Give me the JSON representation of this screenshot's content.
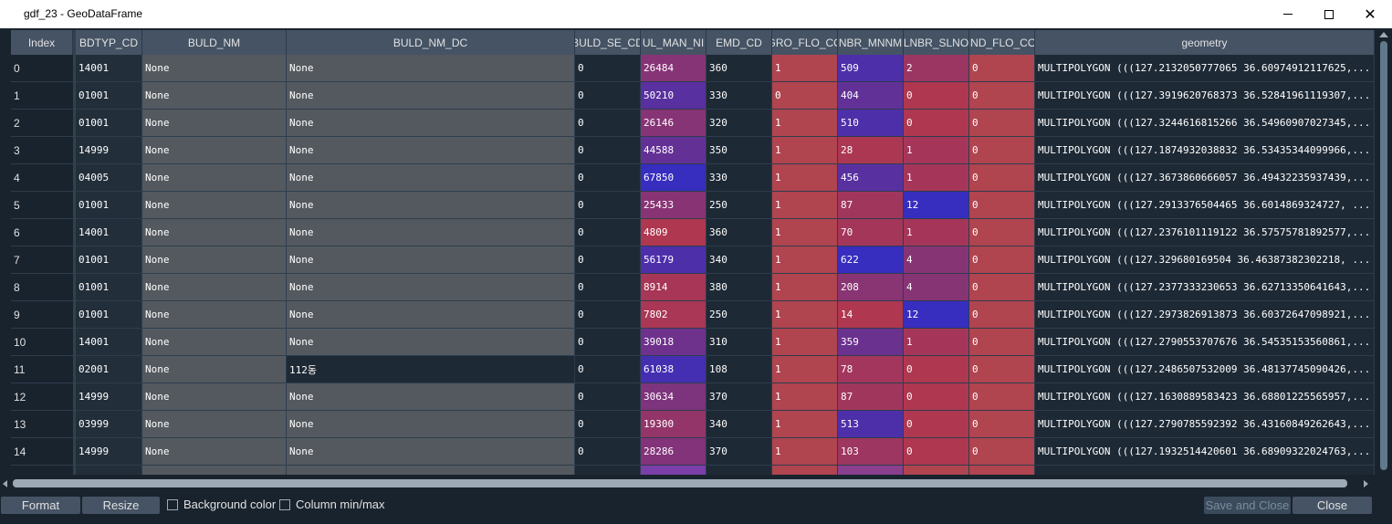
{
  "window": {
    "title": "gdf_23 - GeoDataFrame"
  },
  "table": {
    "index_header": "Index",
    "columns": [
      "BDTYP_CD",
      "BULD_NM",
      "BULD_NM_DC",
      "BULD_SE_CD",
      "UL_MAN_NI",
      "EMD_CD",
      "GRO_FLO_CO",
      "NBR_MNNM",
      "LNBR_SLNO",
      "IND_FLO_CO",
      "geometry"
    ],
    "rows": [
      {
        "index": "0",
        "cells": [
          "14001",
          "None",
          "None",
          "0",
          "26484",
          "360",
          "1",
          "509",
          "2",
          "0",
          "MULTIPOLYGON (((127.2132050777065 36.60974912117625,..."
        ]
      },
      {
        "index": "1",
        "cells": [
          "01001",
          "None",
          "None",
          "0",
          "50210",
          "330",
          "0",
          "404",
          "0",
          "0",
          "MULTIPOLYGON (((127.3919620768373 36.52841961119307,..."
        ]
      },
      {
        "index": "2",
        "cells": [
          "01001",
          "None",
          "None",
          "0",
          "26146",
          "320",
          "1",
          "510",
          "0",
          "0",
          "MULTIPOLYGON (((127.3244616815266 36.54960907027345,..."
        ]
      },
      {
        "index": "3",
        "cells": [
          "14999",
          "None",
          "None",
          "0",
          "44588",
          "350",
          "1",
          "28",
          "1",
          "0",
          "MULTIPOLYGON (((127.1874932038832 36.53435344099966,..."
        ]
      },
      {
        "index": "4",
        "cells": [
          "04005",
          "None",
          "None",
          "0",
          "67850",
          "330",
          "1",
          "456",
          "1",
          "0",
          "MULTIPOLYGON (((127.3673860666057 36.49432235937439,..."
        ]
      },
      {
        "index": "5",
        "cells": [
          "01001",
          "None",
          "None",
          "0",
          "25433",
          "250",
          "1",
          "87",
          "12",
          "0",
          "MULTIPOLYGON (((127.2913376504465 36.6014869324727, ..."
        ]
      },
      {
        "index": "6",
        "cells": [
          "14001",
          "None",
          "None",
          "0",
          "4809",
          "360",
          "1",
          "70",
          "1",
          "0",
          "MULTIPOLYGON (((127.2376101119122 36.57575781892577,..."
        ]
      },
      {
        "index": "7",
        "cells": [
          "01001",
          "None",
          "None",
          "0",
          "56179",
          "340",
          "1",
          "622",
          "4",
          "0",
          "MULTIPOLYGON (((127.329680169504 36.46387382302218, ..."
        ]
      },
      {
        "index": "8",
        "cells": [
          "01001",
          "None",
          "None",
          "0",
          "8914",
          "380",
          "1",
          "208",
          "4",
          "0",
          "MULTIPOLYGON (((127.2377333230653 36.62713350641643,..."
        ]
      },
      {
        "index": "9",
        "cells": [
          "01001",
          "None",
          "None",
          "0",
          "7802",
          "250",
          "1",
          "14",
          "12",
          "0",
          "MULTIPOLYGON (((127.2973826913873 36.60372647098921,..."
        ]
      },
      {
        "index": "10",
        "cells": [
          "14001",
          "None",
          "None",
          "0",
          "39018",
          "310",
          "1",
          "359",
          "1",
          "0",
          "MULTIPOLYGON (((127.2790553707676 36.54535153560861,..."
        ]
      },
      {
        "index": "11",
        "cells": [
          "02001",
          "None",
          "112동",
          "0",
          "61038",
          "108",
          "1",
          "78",
          "0",
          "0",
          "MULTIPOLYGON (((127.2486507532009 36.48137745090426,..."
        ]
      },
      {
        "index": "12",
        "cells": [
          "14999",
          "None",
          "None",
          "0",
          "30634",
          "370",
          "1",
          "87",
          "0",
          "0",
          "MULTIPOLYGON (((127.1630889583423 36.68801225565957,..."
        ]
      },
      {
        "index": "13",
        "cells": [
          "03999",
          "None",
          "None",
          "0",
          "19300",
          "340",
          "1",
          "513",
          "0",
          "0",
          "MULTIPOLYGON (((127.2790785592392 36.43160849262643,..."
        ]
      },
      {
        "index": "14",
        "cells": [
          "14999",
          "None",
          "None",
          "0",
          "28286",
          "370",
          "1",
          "103",
          "0",
          "0",
          "MULTIPOLYGON (((127.1932514420601 36.68909322024763,..."
        ]
      }
    ]
  },
  "bottom": {
    "format_label": "Format",
    "resize_label": "Resize",
    "background_color_label": "Background color",
    "column_minmax_label": "Column min/max",
    "save_close_label": "Save and Close",
    "close_label": "Close"
  },
  "colors": {
    "accent_dark": "#19232d",
    "header": "#455364",
    "text_column": "#54595f",
    "zero_column": "#1d2935"
  }
}
